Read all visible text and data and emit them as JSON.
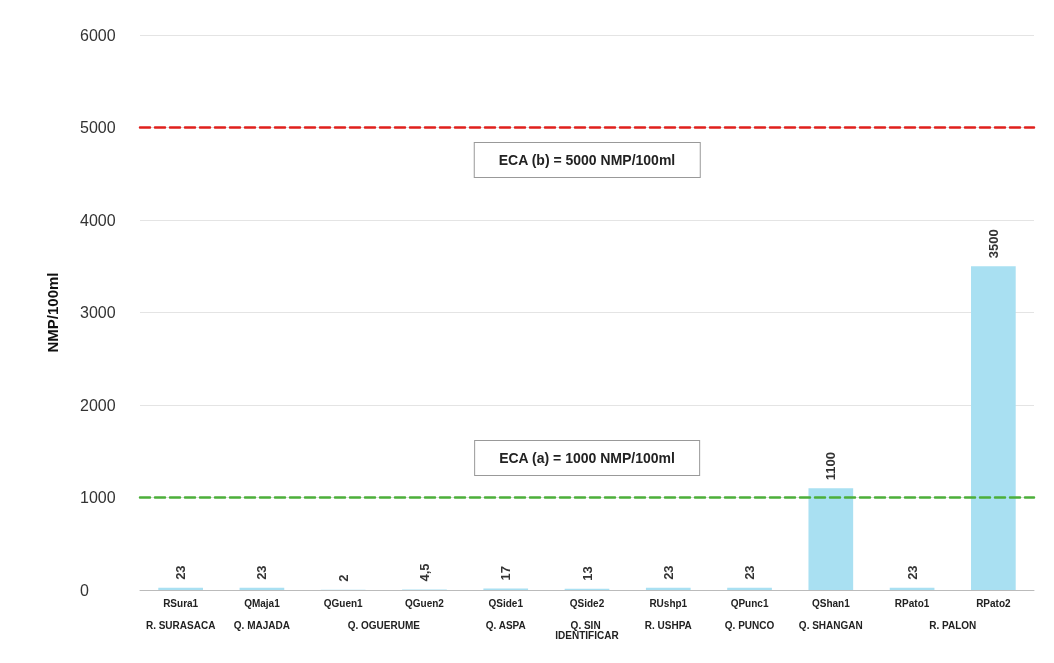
{
  "chart_data": {
    "type": "bar",
    "ylabel": "NMP/100ml",
    "categories": [
      "RSura1",
      "QMaja1",
      "QGuen1",
      "QGuen2",
      "QSide1",
      "QSide2",
      "RUshp1",
      "QPunc1",
      "QShan1",
      "RPato1",
      "RPato2"
    ],
    "annotations": [
      "R. SURASACA",
      "Q. MAJADA",
      "Q. OGUERUME",
      "Q. ASPA",
      "Q. SIN IDENTIFICAR",
      "R. USHPA",
      "Q. PUNCO",
      "Q. SHANGAN",
      "R. PALON"
    ],
    "values": [
      23,
      23,
      2,
      4.5,
      17,
      13,
      23,
      23,
      1100,
      23,
      3500
    ],
    "value_labels": [
      "23",
      "23",
      "2",
      "4,5",
      "17",
      "13",
      "23",
      "23",
      "1100",
      "23",
      "3500"
    ],
    "color": "#a9e0f2",
    "ylim": [
      0,
      6000
    ],
    "yticks": [
      0,
      1000,
      2000,
      3000,
      4000,
      5000,
      6000
    ],
    "grid": "y",
    "ref_lines": [
      {
        "axis": "y",
        "value": 5000,
        "label": "ECA (b) = 5000 NMP/100ml",
        "color": "#e0201c",
        "line_style": "dashed"
      },
      {
        "axis": "y",
        "value": 1000,
        "label": "ECA (a) = 1000 NMP/100ml",
        "color": "#4caf3a",
        "line_style": "dashed"
      }
    ]
  }
}
